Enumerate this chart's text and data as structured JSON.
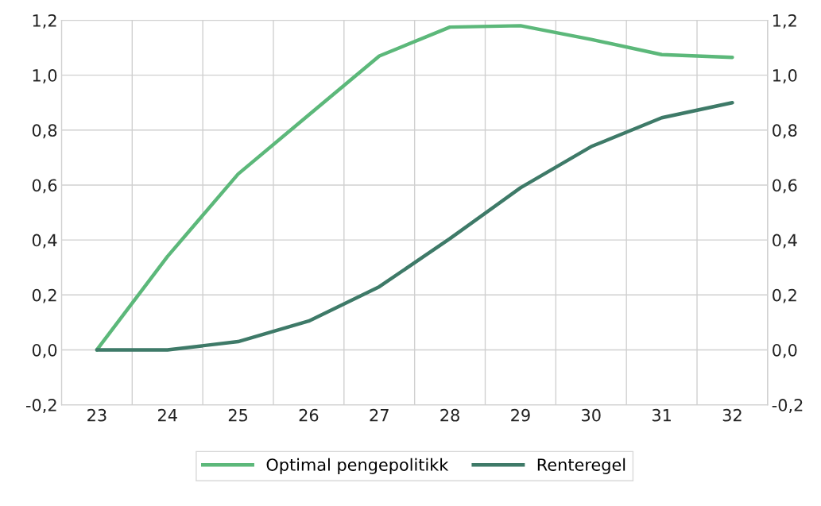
{
  "chart_data": {
    "type": "line",
    "categories": [
      "23",
      "24",
      "25",
      "26",
      "27",
      "28",
      "29",
      "30",
      "31",
      "32"
    ],
    "series": [
      {
        "name": "Optimal pengepolitikk",
        "color": "#5cb87a",
        "values": [
          0,
          0.34,
          0.64,
          0.855,
          1.07,
          1.175,
          1.18,
          1.13,
          1.075,
          1.065
        ]
      },
      {
        "name": "Renteregel",
        "color": "#3e7a68",
        "values": [
          0,
          0,
          0.03,
          0.105,
          0.23,
          0.405,
          0.59,
          0.74,
          0.845,
          0.9
        ]
      }
    ],
    "ylim": [
      -0.2,
      1.2
    ],
    "yticks": [
      {
        "value": -0.2,
        "label": "-0,2"
      },
      {
        "value": 0,
        "label": "0,0"
      },
      {
        "value": 0.2,
        "label": "0,2"
      },
      {
        "value": 0.4,
        "label": "0,4"
      },
      {
        "value": 0.6,
        "label": "0,6"
      },
      {
        "value": 0.8,
        "label": "0,8"
      },
      {
        "value": 1.0,
        "label": "1,0"
      },
      {
        "value": 1.2,
        "label": "1,2"
      }
    ],
    "y2lim": [
      -0.2,
      1.2
    ],
    "y2ticks": [
      {
        "value": -0.2,
        "label": "-0,2"
      },
      {
        "value": 0,
        "label": "0,0"
      },
      {
        "value": 0.2,
        "label": "0,2"
      },
      {
        "value": 0.4,
        "label": "0,4"
      },
      {
        "value": 0.6,
        "label": "0,6"
      },
      {
        "value": 0.8,
        "label": "0,8"
      },
      {
        "value": 1.0,
        "label": "1,0"
      },
      {
        "value": 1.2,
        "label": "1,2"
      }
    ],
    "grid": true,
    "legend": "bottom",
    "marker": "none",
    "line_style": "solid"
  }
}
